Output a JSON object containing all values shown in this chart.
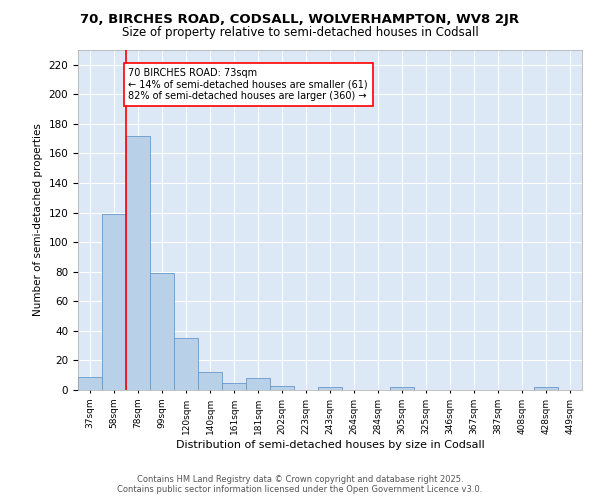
{
  "title1": "70, BIRCHES ROAD, CODSALL, WOLVERHAMPTON, WV8 2JR",
  "title2": "Size of property relative to semi-detached houses in Codsall",
  "xlabel": "Distribution of semi-detached houses by size in Codsall",
  "ylabel": "Number of semi-detached properties",
  "categories": [
    "37sqm",
    "58sqm",
    "78sqm",
    "99sqm",
    "120sqm",
    "140sqm",
    "161sqm",
    "181sqm",
    "202sqm",
    "223sqm",
    "243sqm",
    "264sqm",
    "284sqm",
    "305sqm",
    "325sqm",
    "346sqm",
    "367sqm",
    "387sqm",
    "408sqm",
    "428sqm",
    "449sqm"
  ],
  "values": [
    9,
    119,
    172,
    79,
    35,
    12,
    5,
    8,
    3,
    0,
    2,
    0,
    0,
    2,
    0,
    0,
    0,
    0,
    0,
    2,
    0
  ],
  "bar_color": "#b8d0e8",
  "bar_edge_color": "#6699cc",
  "red_line_x": 1.5,
  "annotation_text": "70 BIRCHES ROAD: 73sqm\n← 14% of semi-detached houses are smaller (61)\n82% of semi-detached houses are larger (360) →",
  "annotation_box_color": "white",
  "annotation_box_edge": "red",
  "footer1": "Contains HM Land Registry data © Crown copyright and database right 2025.",
  "footer2": "Contains public sector information licensed under the Open Government Licence v3.0.",
  "ylim": [
    0,
    230
  ],
  "plot_background": "#dce8f5",
  "title1_fontsize": 9.5,
  "title2_fontsize": 8.5,
  "yticks": [
    0,
    20,
    40,
    60,
    80,
    100,
    120,
    140,
    160,
    180,
    200,
    220
  ]
}
